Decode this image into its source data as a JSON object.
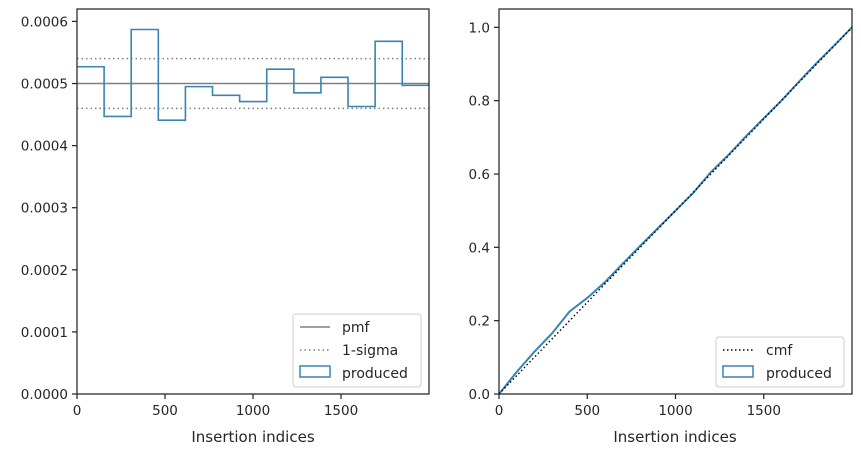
{
  "chart_data": [
    {
      "type": "histogram",
      "xlabel": "Insertion indices",
      "ylabel": "",
      "xlim": [
        0,
        2000
      ],
      "ylim": [
        0,
        0.00062
      ],
      "xticks": [
        0,
        500,
        1000,
        1500
      ],
      "xtick_labels": [
        "0",
        "500",
        "1000",
        "1500"
      ],
      "yticks": [
        0,
        0.0001,
        0.0002,
        0.0003,
        0.0004,
        0.0005,
        0.0006
      ],
      "ytick_labels": [
        "0.0000",
        "0.0001",
        "0.0002",
        "0.0003",
        "0.0004",
        "0.0005",
        "0.0006"
      ],
      "grid": false,
      "legend_position": "lower-right",
      "colors": {
        "produced": "#3a83b5",
        "pmf": "#808080",
        "sigma": "#808080"
      },
      "bin_edges": [
        0,
        154,
        308,
        462,
        616,
        770,
        924,
        1078,
        1232,
        1386,
        1540,
        1694,
        1848,
        2000
      ],
      "series": [
        {
          "name": "pmf",
          "style": "solid",
          "y": 0.0005
        },
        {
          "name": "1-sigma",
          "style": "dotted",
          "y": [
            0.00046,
            0.00054
          ]
        },
        {
          "name": "produced",
          "style": "step",
          "values": [
            0.000527,
            0.000447,
            0.000587,
            0.000441,
            0.000495,
            0.000481,
            0.000471,
            0.000523,
            0.000485,
            0.00051,
            0.000463,
            0.000568,
            0.000497
          ]
        }
      ]
    },
    {
      "type": "line",
      "xlabel": "Insertion indices",
      "ylabel": "",
      "xlim": [
        0,
        2000
      ],
      "ylim": [
        0,
        1.05
      ],
      "xticks": [
        0,
        500,
        1000,
        1500
      ],
      "xtick_labels": [
        "0",
        "500",
        "1000",
        "1500"
      ],
      "yticks": [
        0,
        0.2,
        0.4,
        0.6,
        0.8,
        1.0
      ],
      "ytick_labels": [
        "0.0",
        "0.2",
        "0.4",
        "0.6",
        "0.8",
        "1.0"
      ],
      "grid": false,
      "legend_position": "lower-right",
      "colors": {
        "produced": "#3a83b5",
        "cmf": "#000000"
      },
      "series": [
        {
          "name": "cmf",
          "style": "dotted",
          "x": [
            0,
            2000
          ],
          "y": [
            0,
            1
          ]
        },
        {
          "name": "produced",
          "style": "solid",
          "x": [
            0,
            100,
            200,
            300,
            400,
            500,
            600,
            700,
            800,
            900,
            1000,
            1100,
            1200,
            1300,
            1400,
            1500,
            1600,
            1700,
            1800,
            1900,
            2000
          ],
          "y": [
            0,
            0.06,
            0.115,
            0.165,
            0.225,
            0.262,
            0.305,
            0.355,
            0.404,
            0.452,
            0.5,
            0.548,
            0.605,
            0.652,
            0.703,
            0.752,
            0.8,
            0.852,
            0.903,
            0.951,
            1.0
          ]
        }
      ]
    }
  ]
}
